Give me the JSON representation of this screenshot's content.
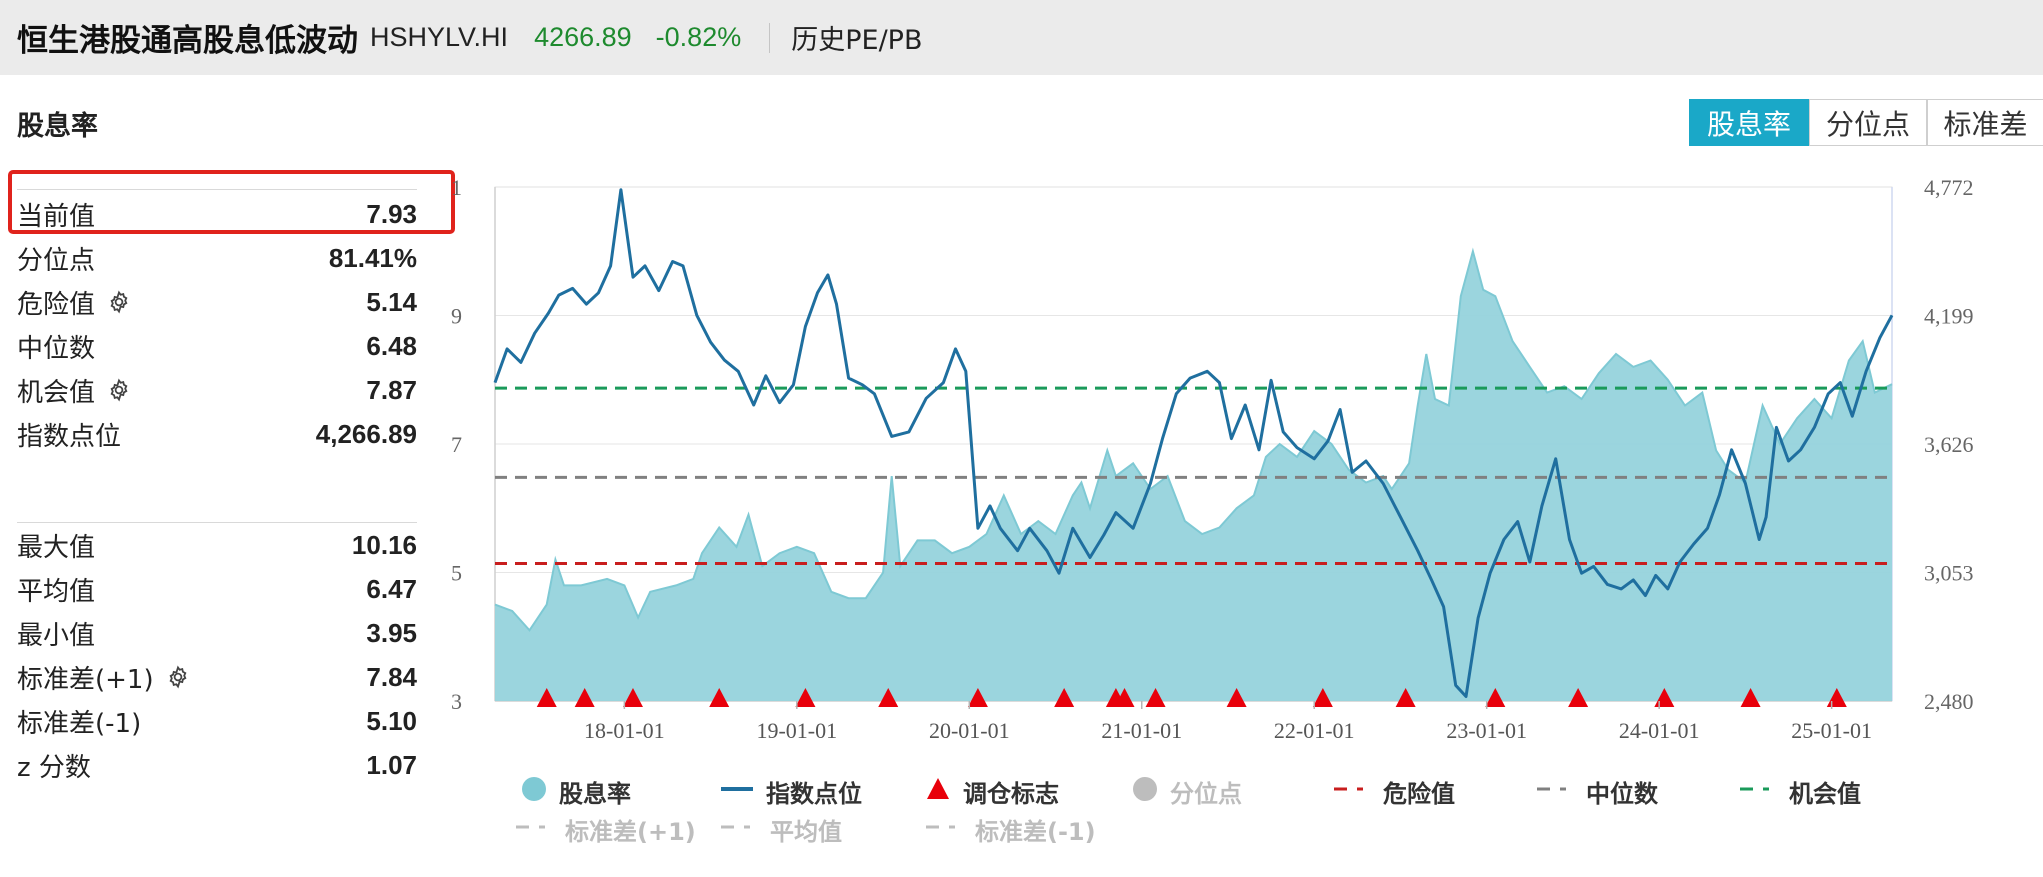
{
  "header": {
    "name": "恒生港股通高股息低波动",
    "code": "HSHYLV.HI",
    "price": "4266.89",
    "change_pct": "-0.82%",
    "history_link": "历史PE/PB"
  },
  "section_title": "股息率",
  "stats": [
    {
      "label": "当前值",
      "value": "7.93",
      "gear": false
    },
    {
      "label": "分位点",
      "value": "81.41%",
      "gear": false
    },
    {
      "label": "危险值",
      "value": "5.14",
      "gear": true
    },
    {
      "label": "中位数",
      "value": "6.48",
      "gear": false
    },
    {
      "label": "机会值",
      "value": "7.87",
      "gear": true
    },
    {
      "label": "指数点位",
      "value": "4,266.89",
      "gear": false
    },
    {
      "label": "最大值",
      "value": "10.16",
      "gear": false
    },
    {
      "label": "平均值",
      "value": "6.47",
      "gear": false
    },
    {
      "label": "最小值",
      "value": "3.95",
      "gear": false
    },
    {
      "label": "标准差(+1)",
      "value": "7.84",
      "gear": true
    },
    {
      "label": "标准差(-1)",
      "value": "5.10",
      "gear": false
    },
    {
      "label": "z 分数",
      "value": "1.07",
      "gear": false
    }
  ],
  "toggle": [
    "股息率",
    "分位点",
    "标准差"
  ],
  "toggle_active": 0,
  "colors": {
    "area": "#96d3dc",
    "area_line": "#7ec9d4",
    "index_line": "#1f6f9f",
    "marker": "#e8000b",
    "danger": "#c81e1e",
    "median": "#808080",
    "opportunity": "#1a9a5a",
    "percentile": "#c8c8c8",
    "disabled": "#bdbdbd"
  },
  "chart_data": {
    "type": "line",
    "x_tick_labels": [
      "18-01-01",
      "19-01-01",
      "20-01-01",
      "21-01-01",
      "22-01-01",
      "23-01-01",
      "24-01-01",
      "25-01-01"
    ],
    "y_left_labels": [
      "3",
      "5",
      "7",
      "9",
      "1"
    ],
    "y_left_range": [
      3,
      11
    ],
    "y_right_labels": [
      "2,480",
      "3,053",
      "3,626",
      "4,199",
      "4,772"
    ],
    "y_right_range": [
      2480,
      4772
    ],
    "x_range": [
      2017.25,
      2025.35
    ],
    "dividend_yield": [
      [
        2017.25,
        4.5
      ],
      [
        2017.35,
        4.4
      ],
      [
        2017.45,
        4.1
      ],
      [
        2017.55,
        4.5
      ],
      [
        2017.6,
        5.2
      ],
      [
        2017.65,
        4.8
      ],
      [
        2017.75,
        4.8
      ],
      [
        2017.9,
        4.9
      ],
      [
        2018.0,
        4.8
      ],
      [
        2018.08,
        4.3
      ],
      [
        2018.15,
        4.7
      ],
      [
        2018.3,
        4.8
      ],
      [
        2018.4,
        4.9
      ],
      [
        2018.45,
        5.3
      ],
      [
        2018.55,
        5.7
      ],
      [
        2018.65,
        5.4
      ],
      [
        2018.72,
        5.9
      ],
      [
        2018.8,
        5.1
      ],
      [
        2018.9,
        5.3
      ],
      [
        2019.0,
        5.4
      ],
      [
        2019.1,
        5.3
      ],
      [
        2019.2,
        4.7
      ],
      [
        2019.3,
        4.6
      ],
      [
        2019.4,
        4.6
      ],
      [
        2019.5,
        5.0
      ],
      [
        2019.55,
        6.5
      ],
      [
        2019.6,
        5.1
      ],
      [
        2019.7,
        5.5
      ],
      [
        2019.8,
        5.5
      ],
      [
        2019.9,
        5.3
      ],
      [
        2020.0,
        5.4
      ],
      [
        2020.1,
        5.6
      ],
      [
        2020.2,
        6.2
      ],
      [
        2020.3,
        5.6
      ],
      [
        2020.4,
        5.8
      ],
      [
        2020.5,
        5.6
      ],
      [
        2020.6,
        6.2
      ],
      [
        2020.65,
        6.4
      ],
      [
        2020.7,
        6.0
      ],
      [
        2020.8,
        6.9
      ],
      [
        2020.85,
        6.5
      ],
      [
        2020.95,
        6.7
      ],
      [
        2021.05,
        6.3
      ],
      [
        2021.15,
        6.5
      ],
      [
        2021.25,
        5.8
      ],
      [
        2021.35,
        5.6
      ],
      [
        2021.45,
        5.7
      ],
      [
        2021.55,
        6.0
      ],
      [
        2021.65,
        6.2
      ],
      [
        2021.72,
        6.8
      ],
      [
        2021.8,
        7.0
      ],
      [
        2021.9,
        6.8
      ],
      [
        2022.0,
        7.2
      ],
      [
        2022.1,
        7.0
      ],
      [
        2022.2,
        6.6
      ],
      [
        2022.3,
        6.4
      ],
      [
        2022.4,
        6.5
      ],
      [
        2022.45,
        6.3
      ],
      [
        2022.55,
        6.7
      ],
      [
        2022.6,
        7.6
      ],
      [
        2022.65,
        8.4
      ],
      [
        2022.7,
        7.7
      ],
      [
        2022.78,
        7.6
      ],
      [
        2022.85,
        9.3
      ],
      [
        2022.92,
        10.0
      ],
      [
        2022.98,
        9.4
      ],
      [
        2023.05,
        9.3
      ],
      [
        2023.15,
        8.6
      ],
      [
        2023.25,
        8.2
      ],
      [
        2023.35,
        7.8
      ],
      [
        2023.45,
        7.9
      ],
      [
        2023.55,
        7.7
      ],
      [
        2023.65,
        8.1
      ],
      [
        2023.75,
        8.4
      ],
      [
        2023.85,
        8.2
      ],
      [
        2023.95,
        8.3
      ],
      [
        2024.05,
        8.0
      ],
      [
        2024.15,
        7.6
      ],
      [
        2024.25,
        7.8
      ],
      [
        2024.33,
        6.9
      ],
      [
        2024.4,
        6.6
      ],
      [
        2024.5,
        6.4
      ],
      [
        2024.6,
        7.6
      ],
      [
        2024.7,
        7.0
      ],
      [
        2024.8,
        7.4
      ],
      [
        2024.9,
        7.7
      ],
      [
        2025.0,
        7.4
      ],
      [
        2025.1,
        8.3
      ],
      [
        2025.18,
        8.6
      ],
      [
        2025.25,
        7.8
      ],
      [
        2025.35,
        7.93
      ]
    ],
    "index_level": [
      [
        2017.25,
        3900
      ],
      [
        2017.32,
        4050
      ],
      [
        2017.4,
        3990
      ],
      [
        2017.48,
        4120
      ],
      [
        2017.56,
        4210
      ],
      [
        2017.62,
        4290
      ],
      [
        2017.7,
        4320
      ],
      [
        2017.78,
        4250
      ],
      [
        2017.85,
        4300
      ],
      [
        2017.92,
        4420
      ],
      [
        2017.98,
        4760
      ],
      [
        2018.05,
        4370
      ],
      [
        2018.12,
        4420
      ],
      [
        2018.2,
        4310
      ],
      [
        2018.28,
        4440
      ],
      [
        2018.34,
        4420
      ],
      [
        2018.42,
        4200
      ],
      [
        2018.5,
        4080
      ],
      [
        2018.58,
        4000
      ],
      [
        2018.66,
        3950
      ],
      [
        2018.75,
        3800
      ],
      [
        2018.82,
        3930
      ],
      [
        2018.9,
        3810
      ],
      [
        2018.98,
        3890
      ],
      [
        2019.05,
        4150
      ],
      [
        2019.12,
        4300
      ],
      [
        2019.18,
        4380
      ],
      [
        2019.23,
        4250
      ],
      [
        2019.3,
        3920
      ],
      [
        2019.38,
        3890
      ],
      [
        2019.45,
        3850
      ],
      [
        2019.55,
        3660
      ],
      [
        2019.65,
        3680
      ],
      [
        2019.75,
        3830
      ],
      [
        2019.85,
        3900
      ],
      [
        2019.92,
        4050
      ],
      [
        2019.98,
        3950
      ],
      [
        2020.05,
        3250
      ],
      [
        2020.12,
        3350
      ],
      [
        2020.18,
        3250
      ],
      [
        2020.28,
        3150
      ],
      [
        2020.35,
        3250
      ],
      [
        2020.45,
        3150
      ],
      [
        2020.52,
        3050
      ],
      [
        2020.6,
        3250
      ],
      [
        2020.7,
        3120
      ],
      [
        2020.78,
        3220
      ],
      [
        2020.85,
        3320
      ],
      [
        2020.95,
        3250
      ],
      [
        2021.05,
        3450
      ],
      [
        2021.12,
        3650
      ],
      [
        2021.2,
        3850
      ],
      [
        2021.28,
        3920
      ],
      [
        2021.38,
        3950
      ],
      [
        2021.45,
        3900
      ],
      [
        2021.52,
        3650
      ],
      [
        2021.6,
        3800
      ],
      [
        2021.68,
        3600
      ],
      [
        2021.75,
        3910
      ],
      [
        2021.82,
        3680
      ],
      [
        2021.9,
        3610
      ],
      [
        2022.0,
        3560
      ],
      [
        2022.08,
        3640
      ],
      [
        2022.15,
        3780
      ],
      [
        2022.22,
        3500
      ],
      [
        2022.3,
        3550
      ],
      [
        2022.4,
        3450
      ],
      [
        2022.5,
        3300
      ],
      [
        2022.6,
        3150
      ],
      [
        2022.68,
        3020
      ],
      [
        2022.75,
        2900
      ],
      [
        2022.82,
        2550
      ],
      [
        2022.88,
        2500
      ],
      [
        2022.95,
        2850
      ],
      [
        2023.02,
        3050
      ],
      [
        2023.1,
        3200
      ],
      [
        2023.18,
        3280
      ],
      [
        2023.25,
        3100
      ],
      [
        2023.32,
        3350
      ],
      [
        2023.4,
        3560
      ],
      [
        2023.48,
        3200
      ],
      [
        2023.55,
        3050
      ],
      [
        2023.62,
        3080
      ],
      [
        2023.7,
        3000
      ],
      [
        2023.78,
        2980
      ],
      [
        2023.85,
        3020
      ],
      [
        2023.92,
        2950
      ],
      [
        2023.98,
        3040
      ],
      [
        2024.05,
        2980
      ],
      [
        2024.12,
        3100
      ],
      [
        2024.2,
        3180
      ],
      [
        2024.28,
        3250
      ],
      [
        2024.35,
        3400
      ],
      [
        2024.42,
        3600
      ],
      [
        2024.5,
        3450
      ],
      [
        2024.58,
        3200
      ],
      [
        2024.62,
        3300
      ],
      [
        2024.68,
        3700
      ],
      [
        2024.75,
        3550
      ],
      [
        2024.82,
        3600
      ],
      [
        2024.9,
        3700
      ],
      [
        2024.98,
        3850
      ],
      [
        2025.05,
        3900
      ],
      [
        2025.12,
        3750
      ],
      [
        2025.2,
        3950
      ],
      [
        2025.28,
        4100
      ],
      [
        2025.35,
        4200
      ]
    ],
    "rebalance_markers": [
      2017.55,
      2017.77,
      2018.05,
      2018.55,
      2019.05,
      2019.53,
      2020.05,
      2020.55,
      2020.85,
      2020.9,
      2021.08,
      2021.55,
      2022.05,
      2022.53,
      2023.05,
      2023.53,
      2024.03,
      2024.53,
      2025.03
    ],
    "reference_lines": {
      "danger": 5.14,
      "median": 6.48,
      "opportunity": 7.87
    },
    "legend": [
      {
        "name": "股息率",
        "symbol": "circle",
        "enabled": true
      },
      {
        "name": "指数点位",
        "symbol": "line",
        "enabled": true
      },
      {
        "name": "调仓标志",
        "symbol": "triangle",
        "enabled": true
      },
      {
        "name": "分位点",
        "symbol": "circle",
        "enabled": false
      },
      {
        "name": "危险值",
        "symbol": "dash",
        "enabled": true
      },
      {
        "name": "中位数",
        "symbol": "dash",
        "enabled": true
      },
      {
        "name": "机会值",
        "symbol": "dash",
        "enabled": true
      },
      {
        "name": "标准差(+1)",
        "symbol": "dash",
        "enabled": false
      },
      {
        "name": "平均值",
        "symbol": "dash",
        "enabled": false
      },
      {
        "name": "标准差(-1)",
        "symbol": "dash",
        "enabled": false
      }
    ]
  }
}
